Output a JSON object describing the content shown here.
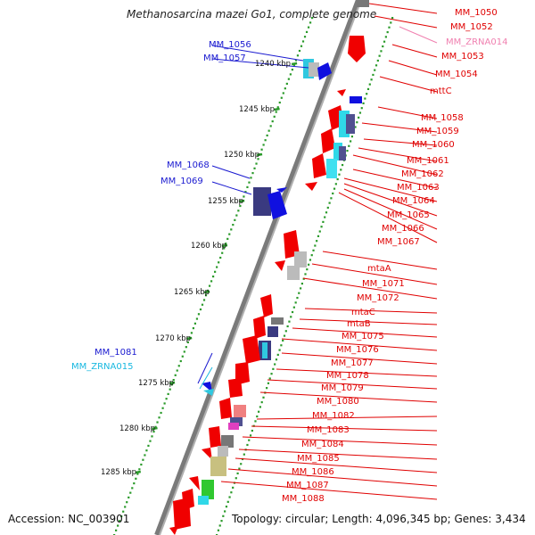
{
  "title": "Methanosarcina mazei Go1, complete genome",
  "accession": "Accession: NC_003901",
  "topology": "Topology: circular; Length: 4,096,345 bp; Genes: 3,434",
  "colors": {
    "backbone": "#8c8c8c",
    "gc_dots": "#2a9a2a",
    "red_label": "#e00000",
    "blue_label": "#1a1ad0",
    "pink_label": "#f080b0",
    "cyan_label": "#18b8e0"
  },
  "kbp_labels": [
    "1240 kbp",
    "1245 kbp",
    "1250 kbp",
    "1255 kbp",
    "1260 kbp",
    "1265 kbp",
    "1270 kbp",
    "1275 kbp",
    "1280 kbp",
    "1285 kbp"
  ],
  "left_genes": [
    {
      "label": "MM_1056",
      "color": "#1a1ad0"
    },
    {
      "label": "MM_1057",
      "color": "#1a1ad0"
    },
    {
      "label": "MM_1068",
      "color": "#1a1ad0"
    },
    {
      "label": "MM_1069",
      "color": "#1a1ad0"
    },
    {
      "label": "MM_1081",
      "color": "#1a1ad0"
    },
    {
      "label": "MM_ZRNA015",
      "color": "#18b8e0"
    }
  ],
  "right_genes": [
    {
      "label": "MM_1050",
      "color": "#e00000"
    },
    {
      "label": "MM_1052",
      "color": "#e00000"
    },
    {
      "label": "MM_ZRNA014",
      "color": "#f080b0"
    },
    {
      "label": "MM_1053",
      "color": "#e00000"
    },
    {
      "label": "MM_1054",
      "color": "#e00000"
    },
    {
      "label": "mttC",
      "color": "#e00000"
    },
    {
      "label": "MM_1058",
      "color": "#e00000"
    },
    {
      "label": "MM_1059",
      "color": "#e00000"
    },
    {
      "label": "MM_1060",
      "color": "#e00000"
    },
    {
      "label": "MM_1061",
      "color": "#e00000"
    },
    {
      "label": "MM_1062",
      "color": "#e00000"
    },
    {
      "label": "MM_1063",
      "color": "#e00000"
    },
    {
      "label": "MM_1064",
      "color": "#e00000"
    },
    {
      "label": "MM_1065",
      "color": "#e00000"
    },
    {
      "label": "MM_1066",
      "color": "#e00000"
    },
    {
      "label": "MM_1067",
      "color": "#e00000"
    },
    {
      "label": "mtaA",
      "color": "#e00000"
    },
    {
      "label": "MM_1071",
      "color": "#e00000"
    },
    {
      "label": "MM_1072",
      "color": "#e00000"
    },
    {
      "label": "mtaC",
      "color": "#e00000"
    },
    {
      "label": "mtaB",
      "color": "#e00000"
    },
    {
      "label": "MM_1075",
      "color": "#e00000"
    },
    {
      "label": "MM_1076",
      "color": "#e00000"
    },
    {
      "label": "MM_1077",
      "color": "#e00000"
    },
    {
      "label": "MM_1078",
      "color": "#e00000"
    },
    {
      "label": "MM_1079",
      "color": "#e00000"
    },
    {
      "label": "MM_1080",
      "color": "#e00000"
    },
    {
      "label": "MM_1082",
      "color": "#e00000"
    },
    {
      "label": "MM_1083",
      "color": "#e00000"
    },
    {
      "label": "MM_1084",
      "color": "#e00000"
    },
    {
      "label": "MM_1085",
      "color": "#e00000"
    },
    {
      "label": "MM_1086",
      "color": "#e00000"
    },
    {
      "label": "MM_1087",
      "color": "#e00000"
    },
    {
      "label": "MM_1088",
      "color": "#e00000"
    }
  ]
}
